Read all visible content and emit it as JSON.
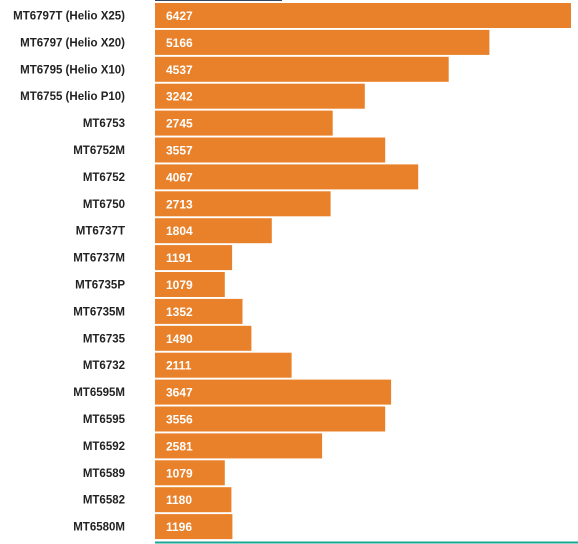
{
  "chart_data": {
    "type": "bar",
    "orientation": "horizontal",
    "categories": [
      "MT6797T (Helio X25)",
      "MT6797 (Helio X20)",
      "MT6795 (Helio X10)",
      "MT6755 (Helio P10)",
      "MT6753",
      "MT6752M",
      "MT6752",
      "MT6750",
      "MT6737T",
      "MT6737M",
      "MT6735P",
      "MT6735M",
      "MT6735",
      "MT6732",
      "MT6595M",
      "MT6595",
      "MT6592",
      "MT6589",
      "MT6582",
      "MT6580M"
    ],
    "values": [
      6427,
      5166,
      4537,
      3242,
      2745,
      3557,
      4067,
      2713,
      1804,
      1191,
      1079,
      1352,
      1490,
      2111,
      3647,
      3556,
      2581,
      1079,
      1180,
      1196
    ],
    "xlim": [
      0,
      6427
    ],
    "bar_color": "#e8812a",
    "axis_color": "#1aa693",
    "top_line_color": "#35455a",
    "grid": false,
    "data_labels": "inside-left"
  }
}
